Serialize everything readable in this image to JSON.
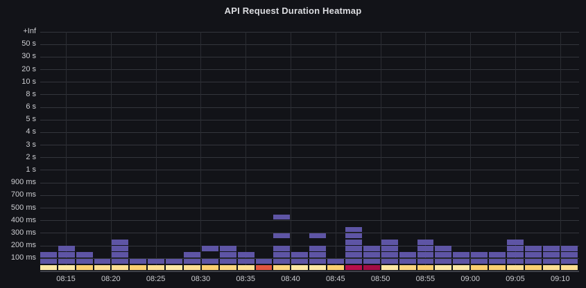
{
  "panel": {
    "title": "API Request Duration Heatmap"
  },
  "colors": {
    "background": "#121318",
    "grid_horizontal": "#34363d",
    "grid_vertical": "#2b2d33",
    "axis_line": "#3e4048",
    "label_text": "#cdced2",
    "title_text": "#dcdde1",
    "purple": "#5E55A5",
    "yellow_light": "#FDE8A4",
    "yellow_mid_light": "#FDDF92",
    "yellow_mid": "#FCD67F",
    "orange": "#FBCF70",
    "red": "#E2573F",
    "crimson_bright": "#B8104B",
    "crimson_deep": "#A40D45"
  },
  "chart_data": {
    "type": "heatmap",
    "title": "API Request Duration Heatmap",
    "legend_position": "none",
    "grid": "on",
    "y_axis_labels": [
      "+Inf",
      "50 s",
      "30 s",
      "20 s",
      "10 s",
      "8 s",
      "6 s",
      "5 s",
      "4 s",
      "3 s",
      "2 s",
      "1 s",
      "900 ms",
      "700 ms",
      "500 ms",
      "400 ms",
      "300 ms",
      "200 ms",
      "100 ms"
    ],
    "x_axis_labels": [
      "08:15",
      "08:20",
      "08:25",
      "08:30",
      "08:35",
      "08:40",
      "08:45",
      "08:50",
      "08:55",
      "09:00",
      "09:05",
      "09:10"
    ],
    "x_range": [
      "08:12",
      "09:12"
    ],
    "column_interval_minutes": 2,
    "rows_per_labeled_interval": 2,
    "row_indexing": "row 0 is the bottom bucket row; the 100 ms gridline sits above row 1; each labeled gridline is two rows apart",
    "columns": [
      {
        "time": "08:12",
        "cells": [
          {
            "row": 0,
            "color": "yellow_light"
          },
          {
            "row": 1,
            "color": "purple"
          },
          {
            "row": 2,
            "color": "purple"
          }
        ]
      },
      {
        "time": "08:14",
        "cells": [
          {
            "row": 0,
            "color": "yellow_light"
          },
          {
            "row": 1,
            "color": "purple"
          },
          {
            "row": 2,
            "color": "purple"
          },
          {
            "row": 3,
            "color": "purple"
          }
        ]
      },
      {
        "time": "08:16",
        "cells": [
          {
            "row": 0,
            "color": "orange"
          },
          {
            "row": 1,
            "color": "purple"
          },
          {
            "row": 2,
            "color": "purple"
          }
        ]
      },
      {
        "time": "08:18",
        "cells": [
          {
            "row": 0,
            "color": "yellow_mid_light"
          },
          {
            "row": 1,
            "color": "purple"
          }
        ]
      },
      {
        "time": "08:20",
        "cells": [
          {
            "row": 0,
            "color": "yellow_mid_light"
          },
          {
            "row": 1,
            "color": "purple"
          },
          {
            "row": 2,
            "color": "purple"
          },
          {
            "row": 3,
            "color": "purple"
          },
          {
            "row": 4,
            "color": "purple"
          }
        ]
      },
      {
        "time": "08:22",
        "cells": [
          {
            "row": 0,
            "color": "orange"
          },
          {
            "row": 1,
            "color": "purple"
          }
        ]
      },
      {
        "time": "08:24",
        "cells": [
          {
            "row": 0,
            "color": "yellow_mid_light"
          },
          {
            "row": 1,
            "color": "purple"
          }
        ]
      },
      {
        "time": "08:26",
        "cells": [
          {
            "row": 0,
            "color": "yellow_light"
          },
          {
            "row": 1,
            "color": "purple"
          }
        ]
      },
      {
        "time": "08:28",
        "cells": [
          {
            "row": 0,
            "color": "yellow_mid_light"
          },
          {
            "row": 1,
            "color": "purple"
          },
          {
            "row": 2,
            "color": "purple"
          }
        ]
      },
      {
        "time": "08:30",
        "cells": [
          {
            "row": 0,
            "color": "orange"
          },
          {
            "row": 1,
            "color": "purple"
          },
          {
            "row": 3,
            "color": "purple"
          }
        ]
      },
      {
        "time": "08:32",
        "cells": [
          {
            "row": 0,
            "color": "yellow_mid"
          },
          {
            "row": 1,
            "color": "purple"
          },
          {
            "row": 2,
            "color": "purple"
          },
          {
            "row": 3,
            "color": "purple"
          }
        ]
      },
      {
        "time": "08:34",
        "cells": [
          {
            "row": 0,
            "color": "yellow_mid_light"
          },
          {
            "row": 1,
            "color": "purple"
          },
          {
            "row": 2,
            "color": "purple"
          }
        ]
      },
      {
        "time": "08:36",
        "cells": [
          {
            "row": 0,
            "color": "red"
          },
          {
            "row": 1,
            "color": "purple"
          }
        ]
      },
      {
        "time": "08:38",
        "cells": [
          {
            "row": 0,
            "color": "yellow_mid"
          },
          {
            "row": 1,
            "color": "purple"
          },
          {
            "row": 2,
            "color": "purple"
          },
          {
            "row": 3,
            "color": "purple"
          },
          {
            "row": 5,
            "color": "purple"
          },
          {
            "row": 8,
            "color": "purple"
          }
        ]
      },
      {
        "time": "08:40",
        "cells": [
          {
            "row": 0,
            "color": "yellow_light"
          },
          {
            "row": 1,
            "color": "purple"
          },
          {
            "row": 2,
            "color": "purple"
          }
        ]
      },
      {
        "time": "08:42",
        "cells": [
          {
            "row": 0,
            "color": "yellow_light"
          },
          {
            "row": 1,
            "color": "purple"
          },
          {
            "row": 2,
            "color": "purple"
          },
          {
            "row": 3,
            "color": "purple"
          },
          {
            "row": 5,
            "color": "purple"
          }
        ]
      },
      {
        "time": "08:44",
        "cells": [
          {
            "row": 0,
            "color": "orange"
          },
          {
            "row": 1,
            "color": "purple"
          }
        ]
      },
      {
        "time": "08:46",
        "cells": [
          {
            "row": 0,
            "color": "crimson_bright"
          },
          {
            "row": 1,
            "color": "purple"
          },
          {
            "row": 2,
            "color": "purple"
          },
          {
            "row": 3,
            "color": "purple"
          },
          {
            "row": 4,
            "color": "purple"
          },
          {
            "row": 5,
            "color": "purple"
          },
          {
            "row": 6,
            "color": "purple"
          }
        ]
      },
      {
        "time": "08:48",
        "cells": [
          {
            "row": 0,
            "color": "crimson_deep"
          },
          {
            "row": 1,
            "color": "purple"
          },
          {
            "row": 2,
            "color": "purple"
          },
          {
            "row": 3,
            "color": "purple"
          }
        ]
      },
      {
        "time": "08:50",
        "cells": [
          {
            "row": 0,
            "color": "yellow_light"
          },
          {
            "row": 1,
            "color": "purple"
          },
          {
            "row": 2,
            "color": "purple"
          },
          {
            "row": 3,
            "color": "purple"
          },
          {
            "row": 4,
            "color": "purple"
          }
        ]
      },
      {
        "time": "08:52",
        "cells": [
          {
            "row": 0,
            "color": "yellow_mid"
          },
          {
            "row": 1,
            "color": "purple"
          },
          {
            "row": 2,
            "color": "purple"
          }
        ]
      },
      {
        "time": "08:54",
        "cells": [
          {
            "row": 0,
            "color": "orange"
          },
          {
            "row": 1,
            "color": "purple"
          },
          {
            "row": 2,
            "color": "purple"
          },
          {
            "row": 3,
            "color": "purple"
          },
          {
            "row": 4,
            "color": "purple"
          }
        ]
      },
      {
        "time": "08:56",
        "cells": [
          {
            "row": 0,
            "color": "yellow_light"
          },
          {
            "row": 1,
            "color": "purple"
          },
          {
            "row": 2,
            "color": "purple"
          },
          {
            "row": 3,
            "color": "purple"
          }
        ]
      },
      {
        "time": "08:58",
        "cells": [
          {
            "row": 0,
            "color": "yellow_light"
          },
          {
            "row": 1,
            "color": "purple"
          },
          {
            "row": 2,
            "color": "purple"
          }
        ]
      },
      {
        "time": "09:00",
        "cells": [
          {
            "row": 0,
            "color": "orange"
          },
          {
            "row": 1,
            "color": "purple"
          },
          {
            "row": 2,
            "color": "purple"
          }
        ]
      },
      {
        "time": "09:02",
        "cells": [
          {
            "row": 0,
            "color": "orange"
          },
          {
            "row": 1,
            "color": "purple"
          },
          {
            "row": 2,
            "color": "purple"
          }
        ]
      },
      {
        "time": "09:04",
        "cells": [
          {
            "row": 0,
            "color": "yellow_mid_light"
          },
          {
            "row": 1,
            "color": "purple"
          },
          {
            "row": 2,
            "color": "purple"
          },
          {
            "row": 3,
            "color": "purple"
          },
          {
            "row": 4,
            "color": "purple"
          }
        ]
      },
      {
        "time": "09:06",
        "cells": [
          {
            "row": 0,
            "color": "orange"
          },
          {
            "row": 1,
            "color": "purple"
          },
          {
            "row": 2,
            "color": "purple"
          },
          {
            "row": 3,
            "color": "purple"
          }
        ]
      },
      {
        "time": "09:08",
        "cells": [
          {
            "row": 0,
            "color": "yellow_mid_light"
          },
          {
            "row": 1,
            "color": "purple"
          },
          {
            "row": 2,
            "color": "purple"
          },
          {
            "row": 3,
            "color": "purple"
          }
        ]
      },
      {
        "time": "09:10",
        "cells": [
          {
            "row": 0,
            "color": "yellow_mid_light"
          },
          {
            "row": 1,
            "color": "purple"
          },
          {
            "row": 2,
            "color": "purple"
          },
          {
            "row": 3,
            "color": "purple"
          }
        ]
      }
    ]
  }
}
